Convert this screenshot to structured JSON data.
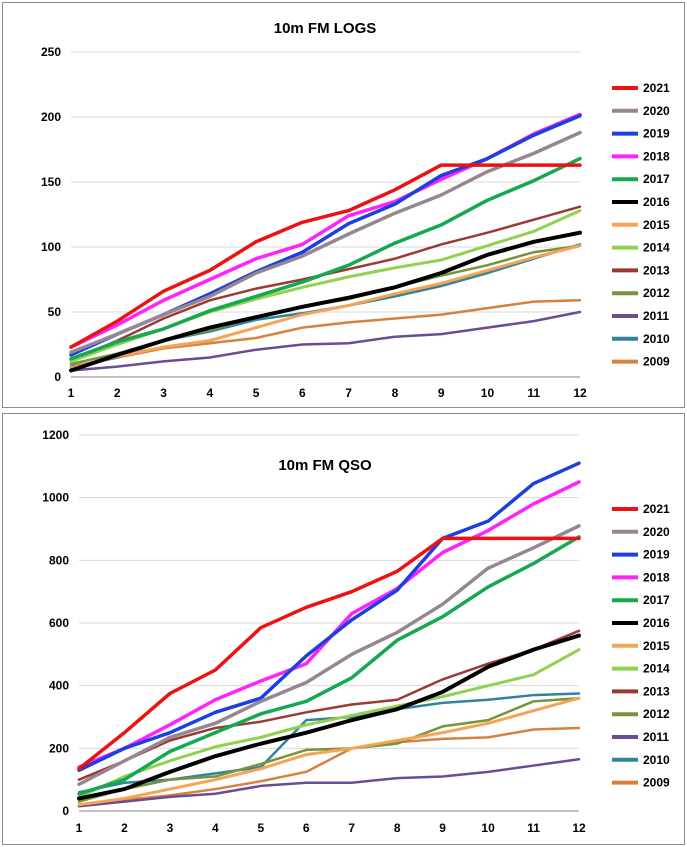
{
  "chart_data": [
    {
      "type": "line",
      "title": "10m FM LOGS",
      "xlabel": "",
      "ylabel": "",
      "x": [
        1,
        2,
        3,
        4,
        5,
        6,
        7,
        8,
        9,
        10,
        11,
        12
      ],
      "xlim": [
        1,
        12
      ],
      "ylim": [
        0,
        250
      ],
      "yticks": [
        0,
        50,
        100,
        150,
        200,
        250
      ],
      "grid": true,
      "legend": "right",
      "series": [
        {
          "name": "2021",
          "color": "#ee1111",
          "width": 3.5,
          "values": [
            23,
            43,
            66,
            82,
            104,
            119,
            128,
            144,
            163,
            163,
            163,
            163
          ]
        },
        {
          "name": "2020",
          "color": "#958692",
          "width": 3.5,
          "values": [
            19,
            33,
            48,
            62,
            80,
            93,
            110,
            126,
            140,
            158,
            172,
            188
          ]
        },
        {
          "name": "2019",
          "color": "#1b3fe0",
          "width": 3.5,
          "values": [
            17,
            33,
            48,
            64,
            81,
            96,
            118,
            133,
            155,
            168,
            186,
            201
          ]
        },
        {
          "name": "2018",
          "color": "#ff22ff",
          "width": 3.5,
          "values": [
            23,
            40,
            59,
            75,
            91,
            102,
            124,
            135,
            152,
            168,
            187,
            202
          ]
        },
        {
          "name": "2017",
          "color": "#14a850",
          "width": 3.5,
          "values": [
            14,
            27,
            37,
            51,
            62,
            73,
            86,
            103,
            117,
            136,
            151,
            168
          ]
        },
        {
          "name": "2016",
          "color": "#000000",
          "width": 4,
          "values": [
            5,
            17,
            28,
            38,
            46,
            54,
            61,
            69,
            80,
            94,
            104,
            111
          ]
        },
        {
          "name": "2015",
          "color": "#f5a355",
          "width": 3,
          "values": [
            7,
            16,
            23,
            28,
            38,
            48,
            55,
            64,
            72,
            82,
            92,
            101
          ]
        },
        {
          "name": "2014",
          "color": "#92d050",
          "width": 3,
          "values": [
            12,
            25,
            37,
            50,
            60,
            69,
            77,
            84,
            90,
            101,
            112,
            128
          ]
        },
        {
          "name": "2013",
          "color": "#9b3a35",
          "width": 2.5,
          "values": [
            13,
            28,
            45,
            59,
            68,
            75,
            83,
            91,
            102,
            111,
            121,
            131
          ]
        },
        {
          "name": "2012",
          "color": "#77933c",
          "width": 2.5,
          "values": [
            10,
            18,
            28,
            36,
            46,
            54,
            60,
            69,
            78,
            86,
            96,
            101
          ]
        },
        {
          "name": "2011",
          "color": "#6a4c95",
          "width": 2.5,
          "values": [
            5,
            8,
            12,
            15,
            21,
            25,
            26,
            31,
            33,
            38,
            43,
            50
          ]
        },
        {
          "name": "2010",
          "color": "#31849b",
          "width": 2.5,
          "values": [
            8,
            15,
            28,
            35,
            44,
            49,
            55,
            62,
            70,
            80,
            91,
            102
          ]
        },
        {
          "name": "2009",
          "color": "#d7813e",
          "width": 2.5,
          "values": [
            7,
            15,
            22,
            26,
            30,
            38,
            42,
            45,
            48,
            53,
            58,
            59
          ]
        }
      ]
    },
    {
      "type": "line",
      "title": "10m FM QSO",
      "xlabel": "",
      "ylabel": "",
      "x": [
        1,
        2,
        3,
        4,
        5,
        6,
        7,
        8,
        9,
        10,
        11,
        12
      ],
      "xlim": [
        1,
        12
      ],
      "ylim": [
        0,
        1200
      ],
      "yticks": [
        0,
        200,
        400,
        600,
        800,
        1000,
        1200
      ],
      "grid": true,
      "legend": "right",
      "series": [
        {
          "name": "2021",
          "color": "#ee1111",
          "width": 3.5,
          "values": [
            135,
            250,
            375,
            450,
            585,
            650,
            700,
            765,
            870,
            870,
            870,
            870
          ]
        },
        {
          "name": "2020",
          "color": "#958692",
          "width": 3.5,
          "values": [
            85,
            160,
            235,
            280,
            350,
            410,
            500,
            570,
            660,
            775,
            840,
            910
          ]
        },
        {
          "name": "2019",
          "color": "#1b3fe0",
          "width": 3.5,
          "values": [
            130,
            200,
            250,
            315,
            360,
            495,
            610,
            705,
            870,
            925,
            1045,
            1110
          ]
        },
        {
          "name": "2018",
          "color": "#ff22ff",
          "width": 3.5,
          "values": [
            140,
            200,
            275,
            355,
            415,
            470,
            630,
            710,
            825,
            895,
            980,
            1050
          ]
        },
        {
          "name": "2017",
          "color": "#14a850",
          "width": 3.5,
          "values": [
            55,
            100,
            190,
            250,
            310,
            350,
            425,
            545,
            620,
            715,
            790,
            875
          ]
        },
        {
          "name": "2016",
          "color": "#000000",
          "width": 4,
          "values": [
            40,
            70,
            125,
            175,
            215,
            250,
            290,
            325,
            380,
            460,
            515,
            560
          ]
        },
        {
          "name": "2015",
          "color": "#f5a355",
          "width": 3,
          "values": [
            20,
            40,
            70,
            100,
            135,
            180,
            200,
            225,
            250,
            280,
            320,
            360
          ]
        },
        {
          "name": "2014",
          "color": "#92d050",
          "width": 3,
          "values": [
            45,
            110,
            160,
            205,
            235,
            275,
            305,
            335,
            365,
            400,
            435,
            515
          ]
        },
        {
          "name": "2013",
          "color": "#9b3a35",
          "width": 2.5,
          "values": [
            100,
            160,
            225,
            265,
            285,
            315,
            340,
            355,
            420,
            470,
            515,
            575
          ]
        },
        {
          "name": "2012",
          "color": "#77933c",
          "width": 2.5,
          "values": [
            30,
            70,
            100,
            110,
            150,
            195,
            200,
            215,
            270,
            290,
            350,
            360
          ]
        },
        {
          "name": "2011",
          "color": "#6a4c95",
          "width": 2.5,
          "values": [
            15,
            30,
            45,
            55,
            80,
            90,
            90,
            105,
            110,
            125,
            145,
            165
          ]
        },
        {
          "name": "2010",
          "color": "#31849b",
          "width": 2.5,
          "values": [
            60,
            90,
            100,
            120,
            140,
            290,
            300,
            325,
            345,
            355,
            370,
            375
          ]
        },
        {
          "name": "2009",
          "color": "#d7813e",
          "width": 2.5,
          "values": [
            20,
            35,
            50,
            70,
            95,
            125,
            200,
            220,
            230,
            235,
            260,
            265
          ]
        }
      ]
    }
  ]
}
